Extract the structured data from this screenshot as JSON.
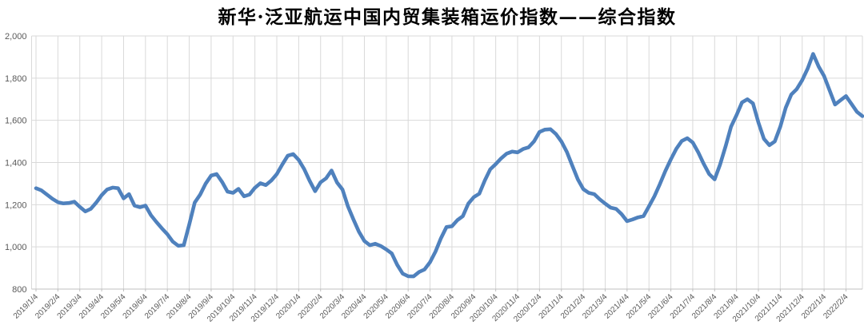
{
  "title": "新华·泛亚航运中国内贸集装箱运价指数——综合指数",
  "chart_data": {
    "type": "line",
    "series_name": "综合指数",
    "line_color": "#4F81BD",
    "grid_color": "#D9D9D9",
    "axis_color": "#BFBFBF",
    "label_color": "#595959",
    "title_color": "#000000",
    "legend": "none",
    "grid": "both",
    "y_min": 800,
    "y_max": 2000,
    "y_step": 200,
    "y_ticks": [
      "2,000",
      "1,800",
      "1,600",
      "1,400",
      "1,200",
      "1,000",
      "800"
    ],
    "points_per_label": 4,
    "x_tick_labels": [
      "2019/1/4",
      "2019/2/4",
      "2019/3/4",
      "2019/4/4",
      "2019/5/4",
      "2019/6/4",
      "2019/7/4",
      "2019/8/4",
      "2019/9/4",
      "2019/10/4",
      "2019/11/4",
      "2019/12/4",
      "2020/1/4",
      "2020/2/4",
      "2020/3/4",
      "2020/4/4",
      "2020/5/4",
      "2020/6/4",
      "2020/7/4",
      "2020/8/4",
      "2020/9/4",
      "2020/10/4",
      "2020/11/4",
      "2020/12/4",
      "2021/1/4",
      "2021/2/4",
      "2021/3/4",
      "2021/4/4",
      "2021/5/4",
      "2021/6/4",
      "2021/7/4",
      "2021/8/4",
      "2021/9/4",
      "2021/10/4",
      "2021/11/4",
      "2021/12/4",
      "2022/1/4",
      "2022/2/4"
    ],
    "values": [
      1278,
      1268,
      1248,
      1228,
      1212,
      1206,
      1208,
      1214,
      1190,
      1168,
      1180,
      1210,
      1245,
      1272,
      1281,
      1278,
      1230,
      1250,
      1196,
      1188,
      1196,
      1150,
      1118,
      1088,
      1060,
      1025,
      1005,
      1008,
      1105,
      1210,
      1248,
      1300,
      1338,
      1345,
      1308,
      1262,
      1256,
      1275,
      1240,
      1248,
      1280,
      1302,
      1293,
      1315,
      1345,
      1390,
      1432,
      1440,
      1412,
      1369,
      1313,
      1264,
      1306,
      1325,
      1362,
      1305,
      1272,
      1192,
      1130,
      1072,
      1028,
      1008,
      1015,
      1004,
      988,
      969,
      915,
      873,
      861,
      860,
      881,
      893,
      928,
      978,
      1041,
      1094,
      1098,
      1127,
      1146,
      1205,
      1236,
      1252,
      1315,
      1368,
      1392,
      1420,
      1442,
      1452,
      1448,
      1464,
      1472,
      1500,
      1545,
      1556,
      1558,
      1535,
      1500,
      1450,
      1385,
      1320,
      1274,
      1256,
      1250,
      1226,
      1205,
      1186,
      1180,
      1155,
      1122,
      1130,
      1140,
      1146,
      1192,
      1240,
      1298,
      1360,
      1415,
      1465,
      1502,
      1515,
      1495,
      1448,
      1394,
      1345,
      1320,
      1390,
      1477,
      1570,
      1625,
      1685,
      1700,
      1680,
      1590,
      1512,
      1482,
      1500,
      1570,
      1660,
      1722,
      1748,
      1790,
      1845,
      1915,
      1855,
      1810,
      1742,
      1675,
      1695,
      1715,
      1678,
      1640,
      1620
    ]
  }
}
